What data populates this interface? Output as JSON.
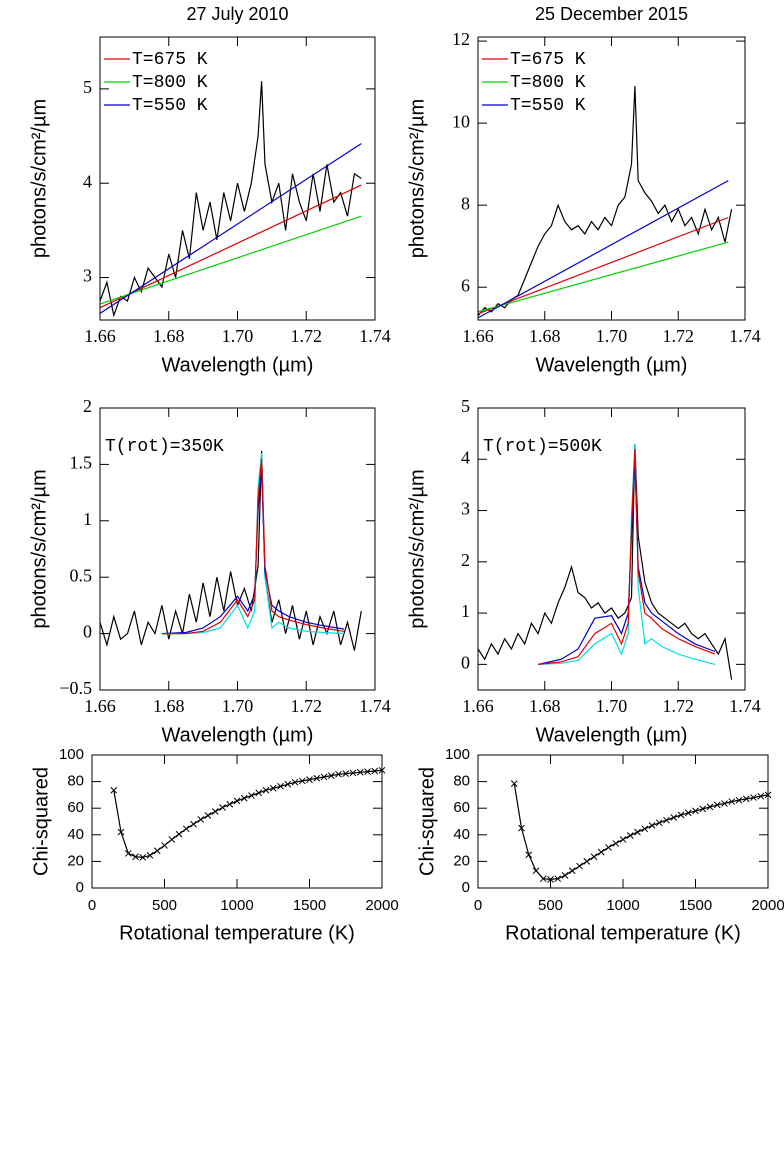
{
  "chart_data": [
    {
      "type": "line",
      "title": "27 July 2010",
      "xlabel": "Wavelength (µm)",
      "ylabel": "photons/s/cm²/µm",
      "xlim": [
        1.66,
        1.74
      ],
      "ylim": [
        2.55,
        5.55
      ],
      "xticks": [
        1.66,
        1.68,
        {
          "value": 1.7,
          "label": "1.70"
        },
        1.72,
        1.74
      ],
      "yticks": [
        3,
        4,
        5
      ],
      "legend": "upper left",
      "series": [
        {
          "color": "#000000",
          "x": [
            1.66,
            1.662,
            1.664,
            1.666,
            1.668,
            1.67,
            1.672,
            1.674,
            1.676,
            1.678,
            1.68,
            1.682,
            1.684,
            1.686,
            1.688,
            1.69,
            1.692,
            1.694,
            1.696,
            1.698,
            1.7,
            1.702,
            1.704,
            1.706,
            1.707,
            1.708,
            1.71,
            1.712,
            1.714,
            1.716,
            1.718,
            1.72,
            1.722,
            1.724,
            1.726,
            1.728,
            1.73,
            1.732,
            1.734,
            1.736
          ],
          "values": [
            2.75,
            2.95,
            2.6,
            2.8,
            2.75,
            3.0,
            2.85,
            3.1,
            3.0,
            2.9,
            3.25,
            3.0,
            3.5,
            3.2,
            3.9,
            3.5,
            3.8,
            3.4,
            3.9,
            3.6,
            4.0,
            3.7,
            4.0,
            4.5,
            5.08,
            4.2,
            3.8,
            4.0,
            3.5,
            4.1,
            3.8,
            3.6,
            4.1,
            3.7,
            4.2,
            3.8,
            3.9,
            3.65,
            4.1,
            4.05
          ]
        },
        {
          "name": "T=675 K",
          "color": "#e00000",
          "x": [
            1.66,
            1.736
          ],
          "values": [
            2.68,
            3.98
          ]
        },
        {
          "name": "T=800 K",
          "color": "#00d000",
          "x": [
            1.66,
            1.736
          ],
          "values": [
            2.72,
            3.65
          ]
        },
        {
          "name": "T=550 K",
          "color": "#0000cc",
          "x": [
            1.66,
            1.736
          ],
          "values": [
            2.62,
            4.42
          ]
        }
      ]
    },
    {
      "type": "line",
      "title": "25 December 2015",
      "xlabel": "Wavelength (µm)",
      "ylabel": "photons/s/cm²/µm",
      "xlim": [
        1.66,
        1.74
      ],
      "ylim": [
        5.2,
        12.1
      ],
      "xticks": [
        1.66,
        1.68,
        {
          "value": 1.7,
          "label": "1.70"
        },
        1.72,
        1.74
      ],
      "yticks": [
        6,
        8,
        10,
        12
      ],
      "legend": "upper left",
      "series": [
        {
          "color": "#000000",
          "x": [
            1.66,
            1.662,
            1.664,
            1.666,
            1.668,
            1.67,
            1.672,
            1.674,
            1.676,
            1.678,
            1.68,
            1.682,
            1.684,
            1.686,
            1.688,
            1.69,
            1.692,
            1.694,
            1.696,
            1.698,
            1.7,
            1.702,
            1.704,
            1.706,
            1.707,
            1.708,
            1.71,
            1.712,
            1.714,
            1.716,
            1.718,
            1.72,
            1.722,
            1.724,
            1.726,
            1.728,
            1.73,
            1.732,
            1.734,
            1.736
          ],
          "values": [
            5.3,
            5.5,
            5.4,
            5.6,
            5.5,
            5.7,
            5.8,
            6.2,
            6.6,
            7.0,
            7.3,
            7.5,
            8.0,
            7.6,
            7.4,
            7.5,
            7.3,
            7.6,
            7.4,
            7.7,
            7.5,
            8.0,
            8.2,
            9.0,
            10.9,
            8.6,
            8.3,
            8.1,
            7.8,
            8.0,
            7.6,
            7.9,
            7.5,
            7.7,
            7.3,
            7.9,
            7.4,
            7.7,
            7.1,
            7.9
          ]
        },
        {
          "name": "T=675 K",
          "color": "#e00000",
          "x": [
            1.66,
            1.735
          ],
          "values": [
            5.35,
            7.7
          ]
        },
        {
          "name": "T=800 K",
          "color": "#00d000",
          "x": [
            1.66,
            1.735
          ],
          "values": [
            5.4,
            7.1
          ]
        },
        {
          "name": "T=550 K",
          "color": "#0000cc",
          "x": [
            1.66,
            1.735
          ],
          "values": [
            5.25,
            8.6
          ]
        }
      ]
    },
    {
      "type": "line",
      "annotation": "T(rot)=350K",
      "xlabel": "Wavelength (µm)",
      "ylabel": "photons/s/cm²/µm",
      "xlim": [
        1.66,
        1.74
      ],
      "ylim": [
        -0.5,
        2
      ],
      "xticks": [
        1.66,
        1.68,
        {
          "value": 1.7,
          "label": "1.70"
        },
        1.72,
        1.74
      ],
      "yticks": [
        {
          "value": -0.5,
          "label": "−0.5"
        },
        0,
        0.5,
        1,
        1.5,
        2
      ],
      "series": [
        {
          "color": "#000000",
          "x": [
            1.66,
            1.662,
            1.664,
            1.666,
            1.668,
            1.67,
            1.672,
            1.674,
            1.676,
            1.678,
            1.68,
            1.682,
            1.684,
            1.686,
            1.688,
            1.69,
            1.692,
            1.694,
            1.696,
            1.698,
            1.7,
            1.702,
            1.704,
            1.706,
            1.707,
            1.708,
            1.71,
            1.712,
            1.714,
            1.716,
            1.718,
            1.72,
            1.722,
            1.724,
            1.726,
            1.728,
            1.73,
            1.732,
            1.734,
            1.736
          ],
          "values": [
            0.1,
            -0.1,
            0.15,
            -0.05,
            0.0,
            0.2,
            -0.1,
            0.1,
            0.0,
            0.25,
            -0.05,
            0.2,
            0.0,
            0.35,
            0.1,
            0.45,
            0.15,
            0.5,
            0.2,
            0.55,
            0.25,
            0.4,
            0.2,
            0.6,
            1.62,
            0.5,
            0.1,
            0.3,
            0.0,
            0.25,
            -0.05,
            0.2,
            -0.1,
            0.15,
            0.0,
            0.2,
            -0.1,
            0.1,
            -0.15,
            0.2
          ]
        },
        {
          "color": "#00e0e0",
          "x": [
            1.678,
            1.685,
            1.69,
            1.695,
            1.7,
            1.703,
            1.705,
            1.706,
            1.707,
            1.708,
            1.71,
            1.712,
            1.715,
            1.72,
            1.725,
            1.731
          ],
          "values": [
            0,
            0,
            0.01,
            0.05,
            0.25,
            0.05,
            0.2,
            1.3,
            1.6,
            0.5,
            0.05,
            0.1,
            0.05,
            0.02,
            0.01,
            0.0
          ]
        },
        {
          "color": "#0000cc",
          "x": [
            1.678,
            1.685,
            1.69,
            1.695,
            1.7,
            1.703,
            1.705,
            1.706,
            1.707,
            1.708,
            1.71,
            1.712,
            1.715,
            1.72,
            1.725,
            1.731
          ],
          "values": [
            0,
            0.01,
            0.05,
            0.15,
            0.33,
            0.2,
            0.35,
            1.1,
            1.45,
            0.55,
            0.25,
            0.2,
            0.15,
            0.1,
            0.07,
            0.04
          ]
        },
        {
          "color": "#e00000",
          "x": [
            1.678,
            1.685,
            1.69,
            1.695,
            1.7,
            1.703,
            1.705,
            1.706,
            1.707,
            1.708,
            1.71,
            1.712,
            1.715,
            1.72,
            1.725,
            1.731
          ],
          "values": [
            0,
            0,
            0.02,
            0.1,
            0.3,
            0.15,
            0.3,
            1.2,
            1.55,
            0.6,
            0.2,
            0.15,
            0.12,
            0.08,
            0.05,
            0.02
          ]
        }
      ]
    },
    {
      "type": "line",
      "annotation": "T(rot)=500K",
      "xlabel": "Wavelength (µm)",
      "ylabel": "photons/s/cm²/µm",
      "xlim": [
        1.66,
        1.74
      ],
      "ylim": [
        -0.5,
        5
      ],
      "xticks": [
        1.66,
        1.68,
        {
          "value": 1.7,
          "label": "1.70"
        },
        1.72,
        1.74
      ],
      "yticks": [
        0,
        1,
        2,
        3,
        4,
        5
      ],
      "series": [
        {
          "color": "#000000",
          "x": [
            1.66,
            1.662,
            1.664,
            1.666,
            1.668,
            1.67,
            1.672,
            1.674,
            1.676,
            1.678,
            1.68,
            1.682,
            1.684,
            1.686,
            1.688,
            1.69,
            1.692,
            1.694,
            1.696,
            1.698,
            1.7,
            1.702,
            1.704,
            1.706,
            1.707,
            1.708,
            1.71,
            1.712,
            1.714,
            1.716,
            1.718,
            1.72,
            1.722,
            1.724,
            1.726,
            1.728,
            1.73,
            1.732,
            1.734,
            1.736
          ],
          "values": [
            0.3,
            0.1,
            0.4,
            0.2,
            0.5,
            0.3,
            0.6,
            0.4,
            0.8,
            0.6,
            1.0,
            0.8,
            1.2,
            1.5,
            1.9,
            1.4,
            1.3,
            1.1,
            1.2,
            1.0,
            1.1,
            0.9,
            1.0,
            1.3,
            4.3,
            2.5,
            1.6,
            1.2,
            1.0,
            0.9,
            0.8,
            0.7,
            0.8,
            0.6,
            0.5,
            0.6,
            0.4,
            0.2,
            0.5,
            -0.3
          ]
        },
        {
          "color": "#00e0e0",
          "x": [
            1.678,
            1.685,
            1.69,
            1.695,
            1.7,
            1.703,
            1.705,
            1.706,
            1.707,
            1.708,
            1.71,
            1.712,
            1.715,
            1.72,
            1.725,
            1.731
          ],
          "values": [
            0,
            0.02,
            0.08,
            0.4,
            0.6,
            0.2,
            0.6,
            2.9,
            4.3,
            1.5,
            0.4,
            0.5,
            0.35,
            0.2,
            0.1,
            0.0
          ]
        },
        {
          "color": "#0000cc",
          "x": [
            1.678,
            1.685,
            1.69,
            1.695,
            1.7,
            1.703,
            1.705,
            1.706,
            1.707,
            1.708,
            1.71,
            1.712,
            1.715,
            1.72,
            1.725,
            1.731
          ],
          "values": [
            0,
            0.1,
            0.3,
            0.9,
            0.95,
            0.6,
            1.0,
            2.5,
            4.0,
            1.9,
            1.2,
            1.0,
            0.85,
            0.6,
            0.4,
            0.25
          ]
        },
        {
          "color": "#e00000",
          "x": [
            1.678,
            1.685,
            1.69,
            1.695,
            1.7,
            1.703,
            1.705,
            1.706,
            1.707,
            1.708,
            1.71,
            1.712,
            1.715,
            1.72,
            1.725,
            1.731
          ],
          "values": [
            0,
            0.05,
            0.15,
            0.6,
            0.8,
            0.4,
            0.8,
            2.7,
            4.2,
            1.8,
            1.0,
            0.9,
            0.7,
            0.5,
            0.35,
            0.2
          ]
        }
      ]
    },
    {
      "type": "line",
      "marker": "x",
      "xlabel": "Rotational temperature (K)",
      "ylabel": "Chi-squared",
      "xlim": [
        0,
        2000
      ],
      "ylim": [
        0,
        100
      ],
      "xticks": [
        0,
        500,
        1000,
        1500,
        2000
      ],
      "yticks": [
        0,
        20,
        40,
        60,
        80,
        100
      ],
      "series": [
        {
          "color": "#000000",
          "x": [
            150,
            200,
            250,
            300,
            350,
            400,
            450,
            500,
            550,
            600,
            650,
            700,
            750,
            800,
            850,
            900,
            950,
            1000,
            1050,
            1100,
            1150,
            1200,
            1250,
            1300,
            1350,
            1400,
            1450,
            1500,
            1550,
            1600,
            1650,
            1700,
            1750,
            1800,
            1850,
            1900,
            1950,
            2000
          ],
          "values": [
            73.5,
            42,
            26,
            23.5,
            23,
            24.5,
            28,
            32,
            36.5,
            40.5,
            44.5,
            48,
            51.5,
            54.5,
            57.5,
            60.5,
            63,
            65.5,
            67.5,
            69.5,
            71.5,
            73.5,
            75,
            76.5,
            78,
            79.5,
            80.5,
            81.5,
            82.5,
            83.5,
            84.5,
            85.5,
            86,
            86.5,
            87,
            87.5,
            88,
            88.5
          ]
        }
      ]
    },
    {
      "type": "line",
      "marker": "x",
      "xlabel": "Rotational temperature (K)",
      "ylabel": "Chi-squared",
      "xlim": [
        0,
        2000
      ],
      "ylim": [
        0,
        100
      ],
      "xticks": [
        0,
        500,
        1000,
        1500,
        2000
      ],
      "yticks": [
        0,
        20,
        40,
        60,
        80,
        100
      ],
      "series": [
        {
          "color": "#000000",
          "x": [
            250,
            300,
            350,
            400,
            450,
            500,
            550,
            600,
            650,
            700,
            750,
            800,
            850,
            900,
            950,
            1000,
            1050,
            1100,
            1150,
            1200,
            1250,
            1300,
            1350,
            1400,
            1450,
            1500,
            1550,
            1600,
            1650,
            1700,
            1750,
            1800,
            1850,
            1900,
            1950,
            2000
          ],
          "values": [
            78.5,
            45,
            25,
            13,
            7,
            6.5,
            7,
            9.5,
            13,
            16.5,
            20,
            23.5,
            27,
            30.5,
            33.5,
            36.5,
            39.5,
            42,
            44.5,
            47,
            49,
            51,
            53,
            55,
            56.5,
            58,
            59.5,
            61,
            62.5,
            63.5,
            65,
            66,
            67,
            68,
            69,
            70
          ]
        }
      ]
    }
  ]
}
